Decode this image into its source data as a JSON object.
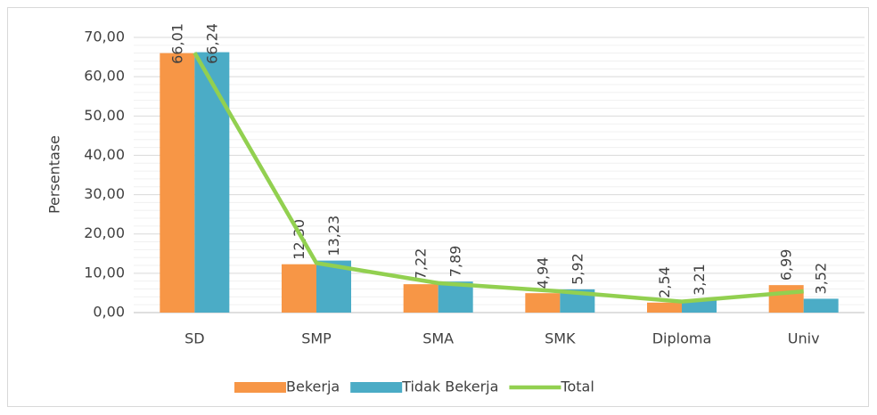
{
  "chart_data": {
    "type": "bar_line",
    "y_axis_label": "Persentase",
    "categories": [
      "SD",
      "SMP",
      "SMA",
      "SMK",
      "Diploma",
      "Univ"
    ],
    "series": [
      {
        "name": "Bekerja",
        "type": "bar",
        "color": "#f79646",
        "values": [
          66.01,
          12.3,
          7.22,
          4.94,
          2.54,
          6.99
        ],
        "value_labels": [
          "66,01",
          "12,30",
          "7,22",
          "4,94",
          "2,54",
          "6,99"
        ]
      },
      {
        "name": "Tidak Bekerja",
        "type": "bar",
        "color": "#4bacc6",
        "values": [
          66.24,
          13.23,
          7.89,
          5.92,
          3.21,
          3.52
        ],
        "value_labels": [
          "66,24",
          "13,23",
          "7,89",
          "5,92",
          "3,21",
          "3,52"
        ]
      },
      {
        "name": "Total",
        "type": "line",
        "color": "#92d050",
        "values": [
          66.1,
          12.6,
          7.5,
          5.4,
          2.8,
          5.4
        ]
      }
    ],
    "ylim": [
      0,
      70
    ],
    "yticks": [
      {
        "value": 0,
        "label": "0,00"
      },
      {
        "value": 10,
        "label": "10,00"
      },
      {
        "value": 20,
        "label": "20,00"
      },
      {
        "value": 30,
        "label": "30,00"
      },
      {
        "value": 40,
        "label": "40,00"
      },
      {
        "value": 50,
        "label": "50,00"
      },
      {
        "value": 60,
        "label": "60,00"
      },
      {
        "value": 70,
        "label": "70,00"
      }
    ],
    "grid": true,
    "legend": "bottom"
  }
}
